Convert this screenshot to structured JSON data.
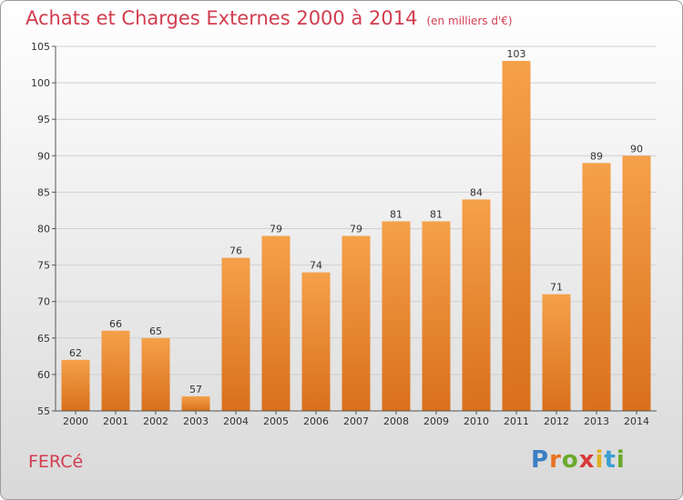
{
  "header": {
    "title": "Achats et Charges Externes 2000 à 2014",
    "subtitle": "(en milliers d'€)"
  },
  "footer": {
    "commune": "FERCé",
    "logo_letters": [
      {
        "ch": "P",
        "color": "#3a7fc4"
      },
      {
        "ch": "r",
        "color": "#e8731f"
      },
      {
        "ch": "o",
        "color": "#6aaa2a"
      },
      {
        "ch": "x",
        "color": "#d93a3a"
      },
      {
        "ch": "i",
        "color": "#e0b020"
      },
      {
        "ch": "t",
        "color": "#3a9fd4"
      },
      {
        "ch": "i",
        "color": "#6aaa2a"
      }
    ]
  },
  "chart_data": {
    "type": "bar",
    "categories": [
      "2000",
      "2001",
      "2002",
      "2003",
      "2004",
      "2005",
      "2006",
      "2007",
      "2008",
      "2009",
      "2010",
      "2011",
      "2012",
      "2013",
      "2014"
    ],
    "values": [
      62,
      66,
      65,
      57,
      76,
      79,
      74,
      79,
      81,
      81,
      84,
      103,
      71,
      89,
      90
    ],
    "title": "Achats et Charges Externes 2000 à 2014",
    "subtitle": "(en milliers d'€)",
    "ylim": [
      55,
      105
    ],
    "yticks": [
      55,
      60,
      65,
      70,
      75,
      80,
      85,
      90,
      95,
      100,
      105
    ],
    "grid": true,
    "bar_color": "#f08b2e"
  }
}
